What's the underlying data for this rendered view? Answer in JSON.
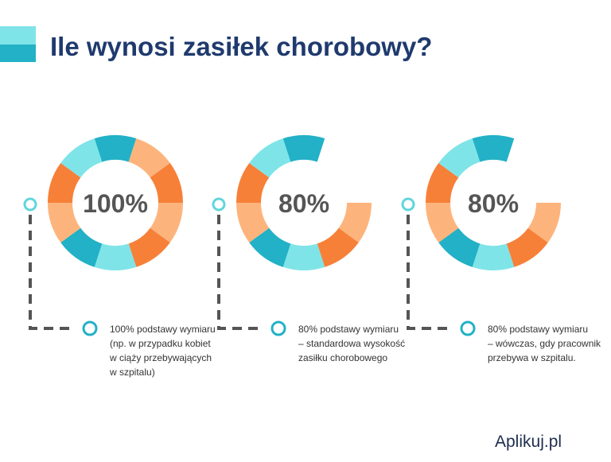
{
  "header": {
    "title": "Ile wynosi zasiłek chorobowy?"
  },
  "items": [
    {
      "value": 100,
      "label": "100%",
      "description": [
        "100% podstawy wymiaru",
        "(np. w przypadku kobiet",
        "w ciąży przebywających",
        "w szpitalu)"
      ]
    },
    {
      "value": 80,
      "label": "80%",
      "description": [
        "80% podstawy wymiaru",
        "– standardowa wysokość",
        "zasiłku chorobowego"
      ]
    },
    {
      "value": 80,
      "label": "80%",
      "description": [
        "80% podstawy wymiaru",
        "– wówczas, gdy pracownik",
        "przebywa w szpitalu."
      ]
    }
  ],
  "logo": "Aplikuj.pl"
}
